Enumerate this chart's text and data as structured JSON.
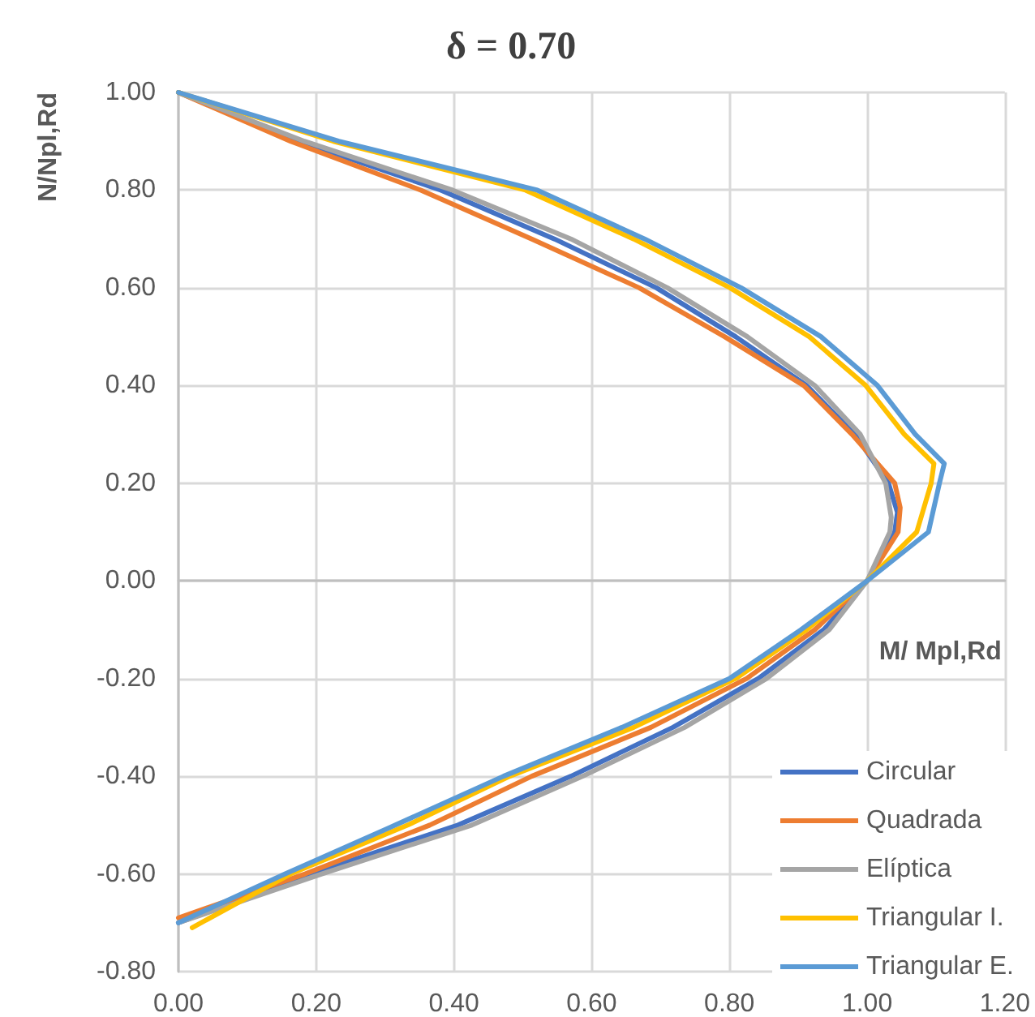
{
  "chart_data": {
    "type": "line",
    "title": "δ = 0.70",
    "xlabel": "M/ Mpl,Rd",
    "ylabel": "N/Npl,Rd",
    "xlim": [
      0,
      1.2
    ],
    "xticks": [
      {
        "value": 0,
        "label": "0.00"
      },
      {
        "value": 0.2,
        "label": "0.20"
      },
      {
        "value": 0.4,
        "label": "0.40"
      },
      {
        "value": 0.6,
        "label": "0.60"
      },
      {
        "value": 0.8,
        "label": "0.80"
      },
      {
        "value": 1,
        "label": "1.00"
      },
      {
        "value": 1.2,
        "label": "1.20"
      }
    ],
    "ylim": [
      -0.8,
      1
    ],
    "yticks": [
      {
        "value": -0.8,
        "label": "-0.80"
      },
      {
        "value": -0.6,
        "label": "-0.60"
      },
      {
        "value": -0.4,
        "label": "-0.40"
      },
      {
        "value": -0.2,
        "label": "-0.20"
      },
      {
        "value": 0,
        "label": "0.00"
      },
      {
        "value": 0.2,
        "label": "0.20"
      },
      {
        "value": 0.4,
        "label": "0.40"
      },
      {
        "value": 0.6,
        "label": "0.60"
      },
      {
        "value": 0.8,
        "label": "0.80"
      },
      {
        "value": 1,
        "label": "1.00"
      }
    ],
    "grid": true,
    "legend": "bottom right",
    "marker": "none",
    "line_style": "solid",
    "series": [
      {
        "name": "Circular",
        "color": "#4472c4",
        "x": [
          0,
          0.175,
          0.381,
          0.546,
          0.694,
          0.809,
          0.912,
          0.982,
          1.031,
          1.044,
          1.04,
          1.0,
          0.937,
          0.842,
          0.718,
          0.57,
          0.406,
          0.192,
          0
        ],
        "values": [
          1,
          0.9,
          0.8,
          0.7,
          0.6,
          0.5,
          0.4,
          0.3,
          0.2,
          0.14,
          0.1,
          0,
          -0.1,
          -0.2,
          -0.3,
          -0.4,
          -0.5,
          -0.6,
          -0.7
        ]
      },
      {
        "name": "Quadrada",
        "color": "#ed7d31",
        "x": [
          0,
          0.163,
          0.352,
          0.513,
          0.669,
          0.793,
          0.908,
          0.978,
          1.04,
          1.048,
          1.045,
          1.0,
          0.924,
          0.825,
          0.686,
          0.513,
          0.365,
          0.184,
          0
        ],
        "values": [
          1,
          0.9,
          0.8,
          0.7,
          0.6,
          0.5,
          0.4,
          0.3,
          0.2,
          0.15,
          0.1,
          0,
          -0.1,
          -0.2,
          -0.3,
          -0.4,
          -0.5,
          -0.6,
          -0.69
        ]
      },
      {
        "name": "Elíptica",
        "color": "#a5a5a5",
        "x": [
          0,
          0.183,
          0.398,
          0.57,
          0.71,
          0.826,
          0.924,
          0.99,
          1.027,
          1.035,
          1.033,
          1.0,
          0.945,
          0.854,
          0.735,
          0.587,
          0.426,
          0.208,
          0
        ],
        "values": [
          1,
          0.9,
          0.8,
          0.7,
          0.6,
          0.5,
          0.4,
          0.3,
          0.2,
          0.13,
          0.1,
          0,
          -0.1,
          -0.2,
          -0.3,
          -0.4,
          -0.5,
          -0.6,
          -0.7
        ]
      },
      {
        "name": "Triangular I.",
        "color": "#ffc000",
        "x": [
          0,
          0.225,
          0.504,
          0.661,
          0.801,
          0.916,
          0.998,
          1.054,
          1.097,
          1.093,
          1.072,
          1.0,
          0.912,
          0.809,
          0.661,
          0.481,
          0.333,
          0.163,
          0.02
        ],
        "values": [
          1,
          0.9,
          0.8,
          0.7,
          0.6,
          0.5,
          0.4,
          0.3,
          0.24,
          0.2,
          0.1,
          0,
          -0.1,
          -0.2,
          -0.3,
          -0.4,
          -0.5,
          -0.6,
          -0.71
        ]
      },
      {
        "name": "Triangular E.",
        "color": "#5b9bd5",
        "x": [
          0,
          0.233,
          0.521,
          0.677,
          0.817,
          0.933,
          1.015,
          1.07,
          1.112,
          1.105,
          1.089,
          1.0,
          0.904,
          0.8,
          0.644,
          0.472,
          0.315,
          0.155,
          0
        ],
        "values": [
          1,
          0.9,
          0.8,
          0.7,
          0.6,
          0.5,
          0.4,
          0.3,
          0.24,
          0.2,
          0.1,
          0,
          -0.1,
          -0.2,
          -0.3,
          -0.4,
          -0.5,
          -0.6,
          -0.7
        ]
      }
    ]
  }
}
